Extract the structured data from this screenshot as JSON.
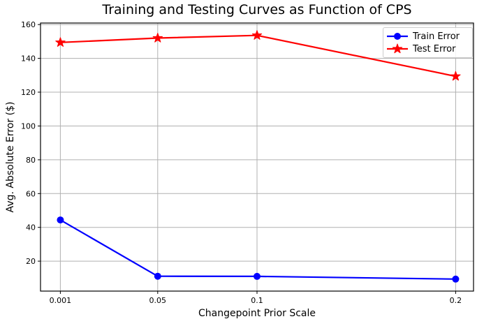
{
  "figure": {
    "background": "#ffffff",
    "spine_color": "#000000"
  },
  "chart_data": {
    "type": "line",
    "title": "Training and Testing Curves as Function of CPS",
    "xlabel": "Changepoint Prior Scale",
    "ylabel": "Avg. Absolute Error ($)",
    "x": [
      0.001,
      0.05,
      0.1,
      0.2
    ],
    "x_tick_labels": [
      "0.001",
      "0.05",
      "0.1",
      "0.2"
    ],
    "y_ticks": [
      20,
      40,
      60,
      80,
      100,
      120,
      140,
      160
    ],
    "xlim": [
      -0.009,
      0.209
    ],
    "ylim": [
      2.3,
      160.9
    ],
    "grid": true,
    "grid_color": "#b0b0b0",
    "legend_position": "upper right",
    "series": [
      {
        "name": "Train Error",
        "color": "#0000ff",
        "marker": "circle",
        "values": [
          44.4,
          11.1,
          11.0,
          9.4
        ]
      },
      {
        "name": "Test Error",
        "color": "#ff0000",
        "marker": "star",
        "values": [
          149.4,
          152.0,
          153.6,
          129.4
        ]
      }
    ]
  }
}
